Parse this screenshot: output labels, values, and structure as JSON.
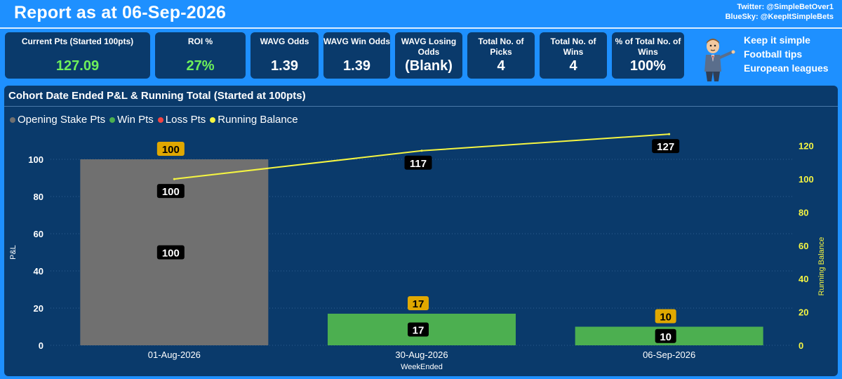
{
  "header": {
    "title": "Report as at 06-Sep-2026",
    "twitter": "Twitter: @SimpleBetOver1",
    "bluesky": "BlueSky: @KeepItSimpleBets"
  },
  "kpis": [
    {
      "label": "Current Pts (Started 100pts)",
      "value": "127.09",
      "green": true
    },
    {
      "label": "ROI %",
      "value": "27%",
      "green": true
    },
    {
      "label": "WAVG Odds",
      "value": "1.39",
      "green": false
    },
    {
      "label": "WAVG Win Odds",
      "value": "1.39",
      "green": false
    },
    {
      "label": "WAVG Losing Odds",
      "value": "(Blank)",
      "green": false
    },
    {
      "label": "Total No. of Picks",
      "value": "4",
      "green": false
    },
    {
      "label": "Total No. of Wins",
      "value": "4",
      "green": false
    },
    {
      "label": "% of Total No. of Wins",
      "value": "100%",
      "green": false
    }
  ],
  "tagline": [
    "Keep it simple",
    "Football tips",
    "European leagues"
  ],
  "panel": {
    "title": "Cohort Date Ended P&L & Running Total (Started at 100pts)"
  },
  "colors": {
    "opening": "#707070",
    "win": "#4caf50",
    "loss": "#ef4444",
    "running": "#f5f542",
    "label_gold": "#e0a800"
  },
  "chart_data": {
    "type": "bar",
    "categories": [
      "01-Aug-2026",
      "30-Aug-2026",
      "06-Sep-2026"
    ],
    "series": [
      {
        "name": "Opening Stake Pts",
        "values": [
          100,
          0,
          0
        ]
      },
      {
        "name": "Win Pts",
        "values": [
          0,
          17,
          10
        ]
      },
      {
        "name": "Loss Pts",
        "values": [
          0,
          0,
          0
        ]
      },
      {
        "name": "Running Balance",
        "type": "line",
        "axis": "right",
        "values": [
          100,
          117,
          127
        ]
      }
    ],
    "total_labels": [
      "100",
      "17",
      "10"
    ],
    "segment_labels": [
      "100",
      "17",
      "10"
    ],
    "running_labels": [
      "100",
      "117",
      "127"
    ],
    "xlabel": "WeekEnded",
    "ylabel": "P&L",
    "y2label": "Running Balance",
    "ylim": [
      0,
      100
    ],
    "yticks": [
      0,
      20,
      40,
      60,
      80,
      100
    ],
    "y2lim": [
      0,
      130
    ],
    "y2ticks": [
      0,
      20,
      40,
      60,
      80,
      100,
      120
    ],
    "legend_position": "top-left",
    "grid": true
  }
}
